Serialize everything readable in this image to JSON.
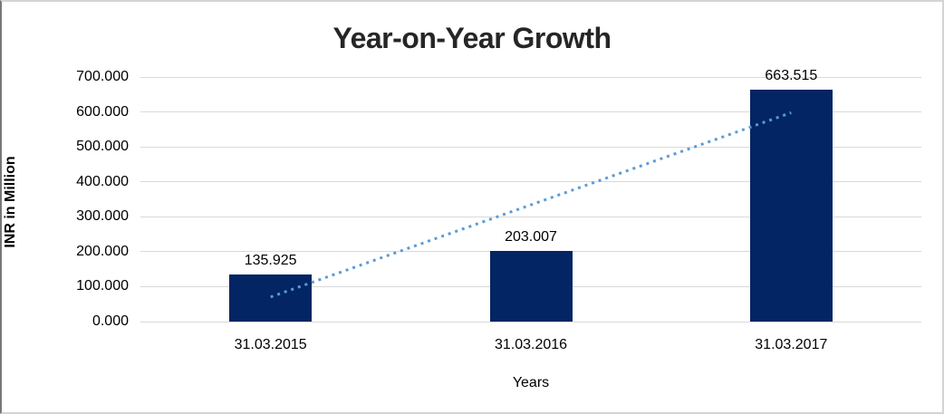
{
  "chart_data": {
    "type": "bar",
    "title": "Year-on-Year Growth",
    "xlabel": "Years",
    "ylabel": "INR in Million",
    "categories": [
      "31.03.2015",
      "31.03.2016",
      "31.03.2017"
    ],
    "values": [
      135.925,
      203.007,
      663.515
    ],
    "data_labels": [
      "135.925",
      "203.007",
      "663.515"
    ],
    "ylim": [
      0,
      700
    ],
    "ytick_step": 100,
    "ytick_labels": [
      "0.000",
      "100.000",
      "200.000",
      "300.000",
      "400.000",
      "500.000",
      "600.000",
      "700.000"
    ],
    "grid": true,
    "legend_position": "none",
    "trendline": {
      "type": "linear",
      "style": "dotted"
    },
    "colors": {
      "bar": "#032563",
      "trendline": "#5b9bd5",
      "gridline": "#d9d9d9",
      "title": "#262626",
      "text": "#000000",
      "background": "#ffffff"
    }
  }
}
